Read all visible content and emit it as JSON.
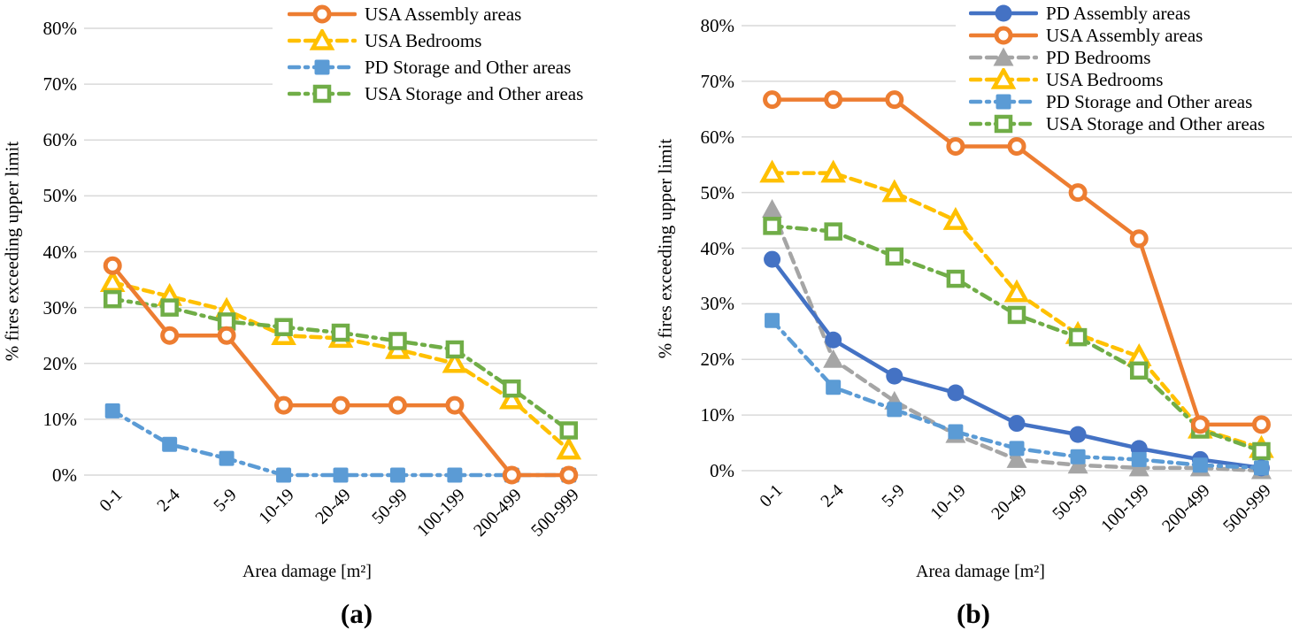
{
  "chart_data": [
    {
      "id": "a",
      "type": "line",
      "panel_label": "(a)",
      "xlabel": "Area damage [m²]",
      "ylabel": "% fires exceeding upper limit",
      "categories": [
        "0-1",
        "2-4",
        "5-9",
        "10-19",
        "20-49",
        "50-99",
        "100-199",
        "200-499",
        "500-999"
      ],
      "y_tick_labels": [
        "80%",
        "70%",
        "60%",
        "50%",
        "40%",
        "30%",
        "20%",
        "10%",
        "0%"
      ],
      "ylim": [
        0,
        80
      ],
      "ytick_step": 10,
      "grid": true,
      "gridline_color": "#D9D9D9",
      "legend_position": "top",
      "series": [
        {
          "name": "USA Assembly areas",
          "color": "#ED7D31",
          "line_style": "solid",
          "marker": "circle-open",
          "values": [
            37.5,
            25,
            25,
            12.5,
            12.5,
            12.5,
            12.5,
            0,
            0
          ]
        },
        {
          "name": "USA Bedrooms",
          "color": "#FFC000",
          "line_style": "dashed",
          "marker": "triangle-open",
          "values": [
            34.5,
            32,
            29.5,
            25,
            24.5,
            22.5,
            20,
            13.5,
            4.5
          ]
        },
        {
          "name": "PD Storage and Other areas",
          "color": "#5B9BD5",
          "line_style": "dashdot",
          "marker": "square-filled",
          "values": [
            11.5,
            5.5,
            3,
            0,
            0,
            0,
            0,
            0,
            0
          ]
        },
        {
          "name": "USA Storage and Other areas",
          "color": "#70AD47",
          "line_style": "dashdot",
          "marker": "square-open",
          "values": [
            31.5,
            30,
            27.5,
            26.5,
            25.5,
            24,
            22.5,
            15.5,
            8
          ]
        }
      ]
    },
    {
      "id": "b",
      "type": "line",
      "panel_label": "(b)",
      "xlabel": "Area damage [m²]",
      "ylabel": "% fires exceeding upper limit",
      "categories": [
        "0-1",
        "2-4",
        "5-9",
        "10-19",
        "20-49",
        "50-99",
        "100-199",
        "200-499",
        "500-999"
      ],
      "y_tick_labels": [
        "80%",
        "70%",
        "60%",
        "50%",
        "40%",
        "30%",
        "20%",
        "10%",
        "0%"
      ],
      "ylim": [
        0,
        80
      ],
      "ytick_step": 10,
      "grid": true,
      "gridline_color": "#D9D9D9",
      "legend_position": "top",
      "series": [
        {
          "name": "PD Assembly areas",
          "color": "#4472C4",
          "line_style": "solid",
          "marker": "circle-filled",
          "values": [
            38,
            23.5,
            17,
            14,
            8.5,
            6.5,
            4,
            2,
            0.5
          ]
        },
        {
          "name": "USA Assembly areas",
          "color": "#ED7D31",
          "line_style": "solid",
          "marker": "circle-open",
          "values": [
            66.7,
            66.7,
            66.7,
            58.3,
            58.3,
            50,
            41.7,
            8.3,
            8.3
          ]
        },
        {
          "name": "PD Bedrooms",
          "color": "#A5A5A5",
          "line_style": "dashed",
          "marker": "triangle-filled",
          "values": [
            47,
            20,
            12.5,
            6.5,
            2,
            1,
            0.5,
            0.5,
            0
          ]
        },
        {
          "name": "USA Bedrooms",
          "color": "#FFC000",
          "line_style": "dashed",
          "marker": "triangle-open",
          "values": [
            53.5,
            53.5,
            50,
            45,
            32,
            24.5,
            20.5,
            7.5,
            4
          ]
        },
        {
          "name": "PD Storage and Other areas",
          "color": "#5B9BD5",
          "line_style": "dashdot",
          "marker": "square-filled",
          "values": [
            27,
            15,
            11,
            7,
            4,
            2.5,
            2,
            1,
            0.5
          ]
        },
        {
          "name": "USA Storage and Other areas",
          "color": "#70AD47",
          "line_style": "dashdot",
          "marker": "square-open",
          "values": [
            44,
            43,
            38.5,
            34.5,
            28,
            24,
            18,
            7.4,
            3.5
          ]
        }
      ]
    }
  ]
}
